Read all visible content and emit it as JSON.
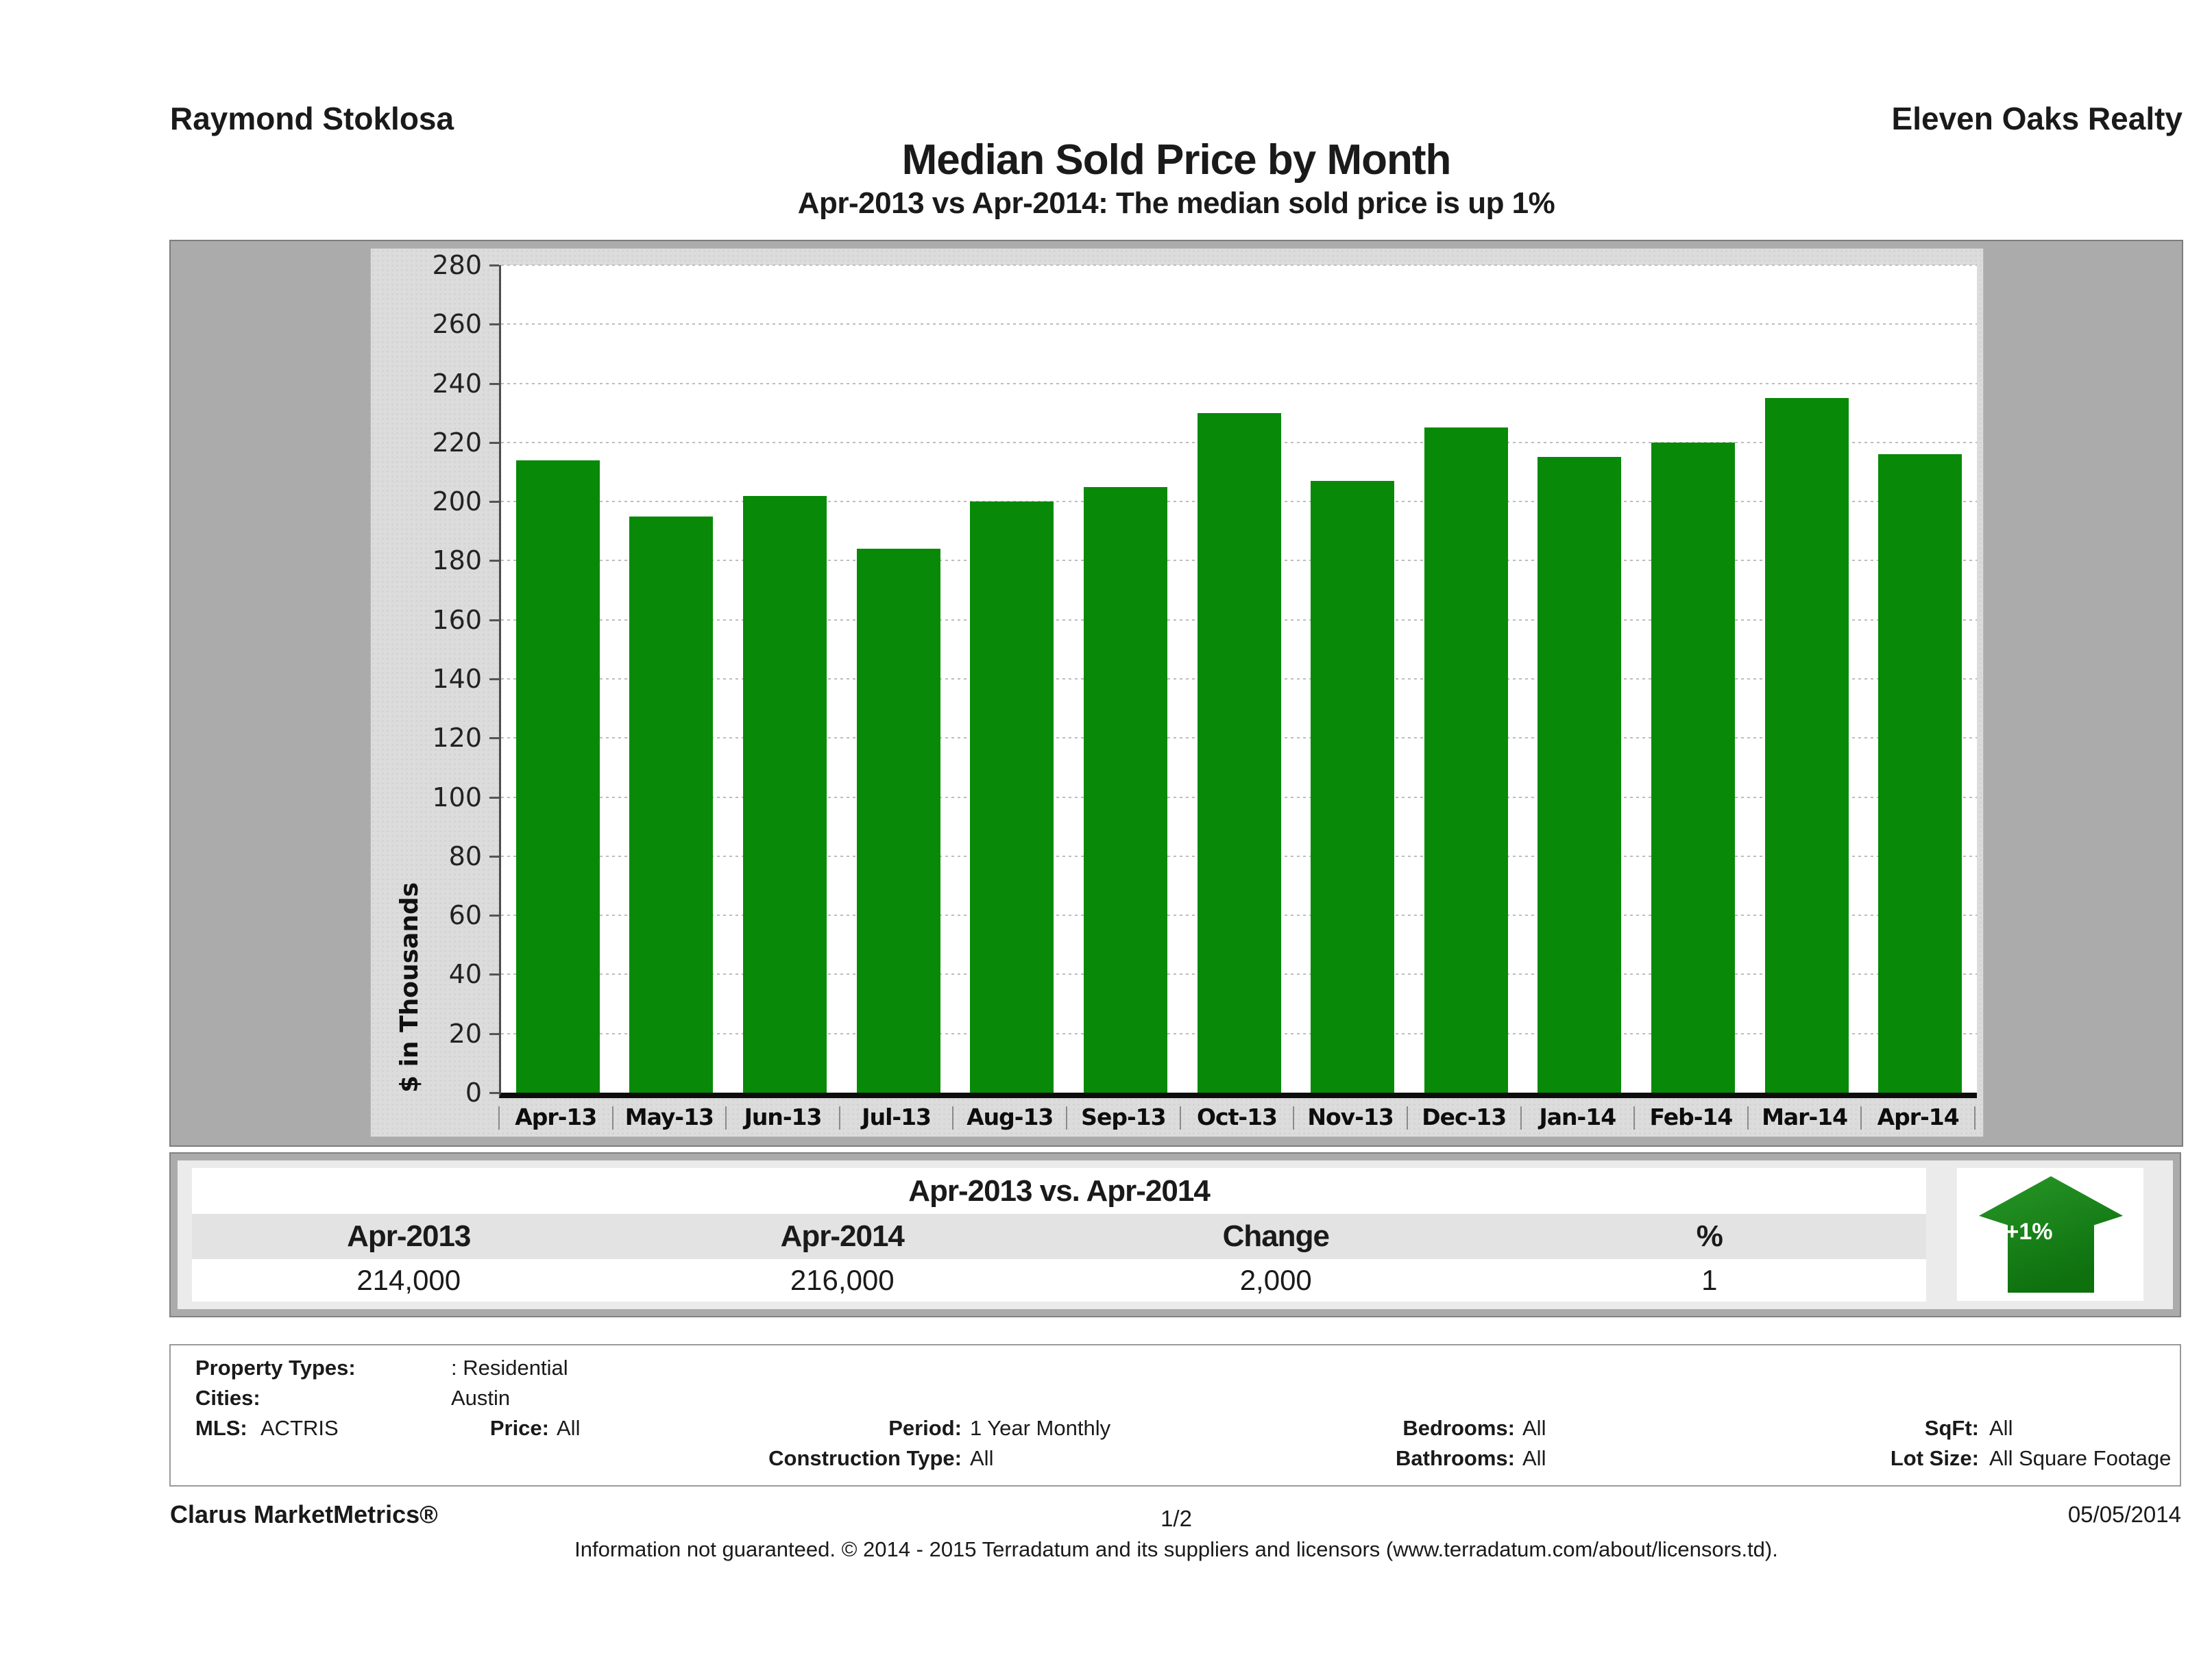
{
  "header": {
    "agent_name": "Raymond Stoklosa",
    "company_name": "Eleven Oaks Realty"
  },
  "title": {
    "main": "Median Sold Price by Month",
    "subtitle": "Apr-2013 vs Apr-2014: The median sold price is up 1%"
  },
  "chart_data": {
    "type": "bar",
    "categories": [
      "Apr-13",
      "May-13",
      "Jun-13",
      "Jul-13",
      "Aug-13",
      "Sep-13",
      "Oct-13",
      "Nov-13",
      "Dec-13",
      "Jan-14",
      "Feb-14",
      "Mar-14",
      "Apr-14"
    ],
    "values": [
      214,
      195,
      202,
      184,
      200,
      205,
      230,
      207,
      225,
      215,
      220,
      235,
      216
    ],
    "title": "Median Sold Price by Month",
    "xlabel": "",
    "ylabel": "$ in Thousands",
    "ylim": [
      0,
      280
    ],
    "ytick_step": 20,
    "grid": "dotted horizontal",
    "legend": "none",
    "bar_color": "#088a08",
    "plot_background": "#ffffff",
    "panel_background": "#dcdcdc"
  },
  "summary": {
    "title": "Apr-2013 vs. Apr-2014",
    "columns": [
      "Apr-2013",
      "Apr-2014",
      "Change",
      "%"
    ],
    "values": [
      "214,000",
      "216,000",
      "2,000",
      "1"
    ],
    "badge": "+1%",
    "badge_color": "#107a10"
  },
  "filters": {
    "property_types_label": "Property Types:",
    "property_types_value": ": Residential",
    "cities_label": "Cities:",
    "cities_value": "Austin",
    "mls_label": "MLS:",
    "mls_value": "ACTRIS",
    "price_label": "Price:",
    "price_value": "All",
    "period_label": "Period:",
    "period_value": "1 Year Monthly",
    "construction_label": "Construction Type:",
    "construction_value": "All",
    "bedrooms_label": "Bedrooms:",
    "bedrooms_value": "All",
    "bathrooms_label": "Bathrooms:",
    "bathrooms_value": "All",
    "sqft_label": "SqFt:",
    "sqft_value": "All",
    "lot_label": "Lot Size:",
    "lot_value": "All Square Footage"
  },
  "footer": {
    "brand": "Clarus MarketMetrics®",
    "page": "1/2",
    "date": "05/05/2014",
    "disclaimer": "Information not guaranteed. © 2014 - 2015 Terradatum and its suppliers and licensors (www.terradatum.com/about/licensors.td)."
  }
}
